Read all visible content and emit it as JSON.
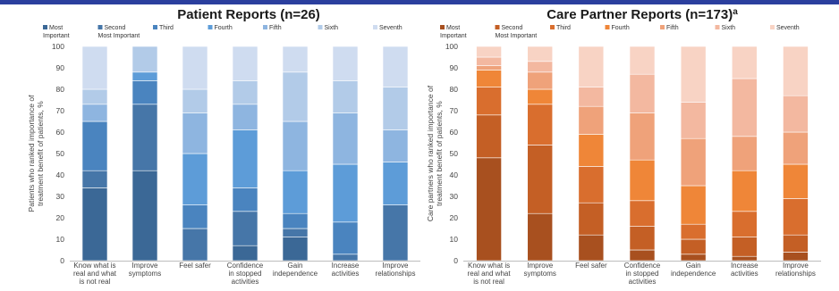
{
  "chart_data": [
    {
      "type": "bar",
      "stacked": true,
      "title": "Patient Reports (n=26)",
      "title_superscript": "",
      "ylabel": [
        "Patients who ranked importance of",
        "treatment benefit of patients, %"
      ],
      "ylim": [
        0,
        100
      ],
      "yticks": [
        0,
        10,
        20,
        30,
        40,
        50,
        60,
        70,
        80,
        90,
        100
      ],
      "categories": [
        [
          "Know what is",
          "real and what",
          "is not real"
        ],
        [
          "Improve",
          "symptoms"
        ],
        [
          "Feel safer"
        ],
        [
          "Confidence",
          "in stopped",
          "activities"
        ],
        [
          "Gain",
          "independence"
        ],
        [
          "Increase",
          "activities"
        ],
        [
          "Improve",
          "relationships"
        ]
      ],
      "series": [
        {
          "name": [
            "Most",
            "Important"
          ],
          "color": "#3b6896",
          "values": [
            34,
            42,
            0,
            7,
            11,
            0,
            0
          ]
        },
        {
          "name": [
            "Second",
            "Most Important"
          ],
          "color": "#4676a8",
          "values": [
            8,
            31,
            15,
            16,
            4,
            3,
            26
          ]
        },
        {
          "name": [
            "Third"
          ],
          "color": "#4a84bf",
          "values": [
            23,
            11,
            11,
            11,
            7,
            15,
            0
          ]
        },
        {
          "name": [
            "Fourth"
          ],
          "color": "#5d9cd8",
          "values": [
            0,
            4,
            24,
            27,
            20,
            27,
            20
          ]
        },
        {
          "name": [
            "Fifth"
          ],
          "color": "#8eb5e0",
          "values": [
            8,
            0,
            19,
            12,
            23,
            24,
            15
          ]
        },
        {
          "name": [
            "Sixth"
          ],
          "color": "#b2cbe8",
          "values": [
            7,
            12,
            11,
            11,
            23,
            15,
            20
          ]
        },
        {
          "name": [
            "Seventh"
          ],
          "color": "#cfdcf0",
          "values": [
            20,
            0,
            20,
            16,
            12,
            16,
            19
          ]
        }
      ]
    },
    {
      "type": "bar",
      "stacked": true,
      "title": "Care Partner Reports (n=173)",
      "title_superscript": "a",
      "ylabel": [
        "Care partners who ranked importance of",
        "treatment benefit of patients, %"
      ],
      "ylim": [
        0,
        100
      ],
      "yticks": [
        0,
        10,
        20,
        30,
        40,
        50,
        60,
        70,
        80,
        90,
        100
      ],
      "categories": [
        [
          "Know what is",
          "real and what",
          "is not real"
        ],
        [
          "Improve",
          "symptoms"
        ],
        [
          "Feel safer"
        ],
        [
          "Confidence",
          "in stopped",
          "activities"
        ],
        [
          "Gain",
          "independence"
        ],
        [
          "Increase",
          "activities"
        ],
        [
          "Improve",
          "relationships"
        ]
      ],
      "series": [
        {
          "name": [
            "Most",
            "Important"
          ],
          "color": "#a8501f",
          "values": [
            48,
            22,
            12,
            5,
            3,
            2,
            4
          ]
        },
        {
          "name": [
            "Second",
            "Most Important"
          ],
          "color": "#c45f25",
          "values": [
            20,
            32,
            15,
            11,
            7,
            9,
            8
          ]
        },
        {
          "name": [
            "Third"
          ],
          "color": "#d96e2e",
          "values": [
            13,
            19,
            17,
            12,
            7,
            12,
            17
          ]
        },
        {
          "name": [
            "Fourth"
          ],
          "color": "#ef8638",
          "values": [
            8,
            7,
            15,
            19,
            18,
            19,
            16
          ]
        },
        {
          "name": [
            "Fifth"
          ],
          "color": "#efa27a",
          "values": [
            2,
            8,
            13,
            22,
            22,
            16,
            15
          ]
        },
        {
          "name": [
            "Sixth"
          ],
          "color": "#f3b8a0",
          "values": [
            4,
            5,
            9,
            18,
            17,
            27,
            17
          ]
        },
        {
          "name": [
            "Seventh"
          ],
          "color": "#f8d3c4",
          "values": [
            5,
            7,
            19,
            13,
            26,
            15,
            23
          ]
        }
      ]
    }
  ]
}
